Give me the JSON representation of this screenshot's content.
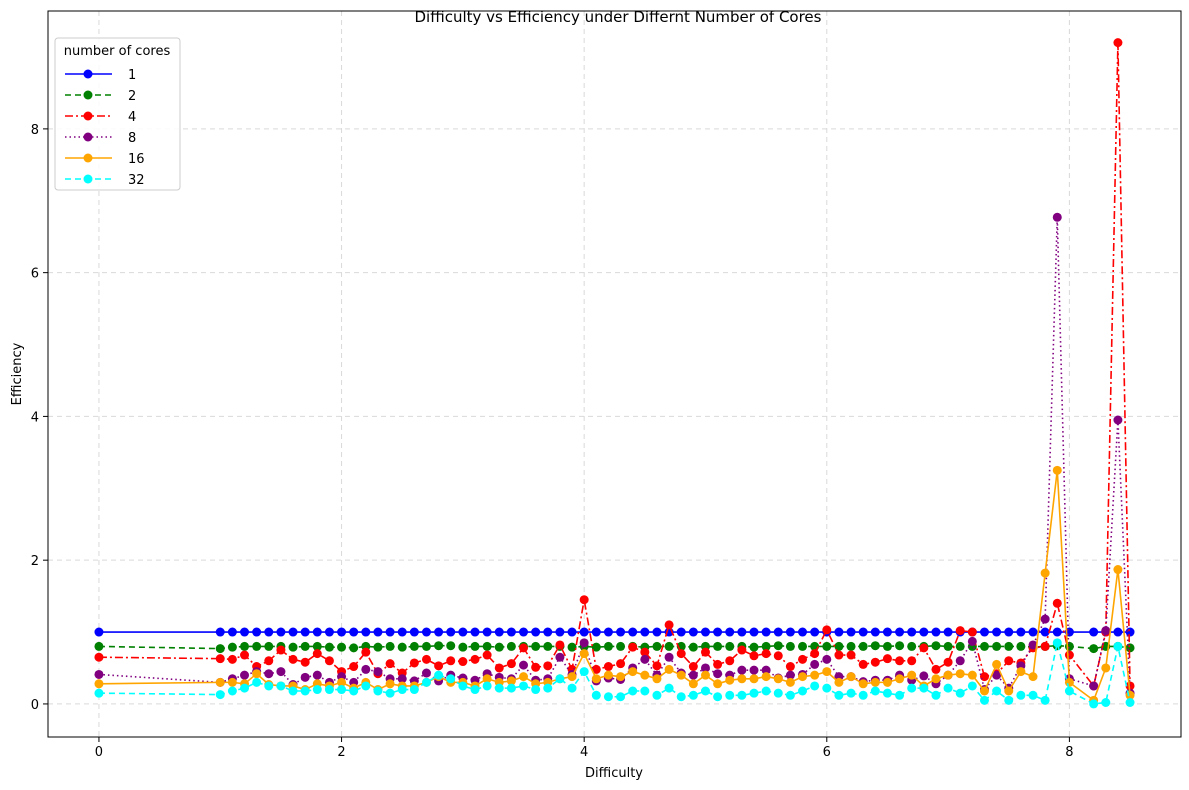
{
  "chart_data": {
    "type": "line",
    "title": "Difficulty vs Efficiency under Differnt Number of Cores",
    "xlabel": "Difficulty",
    "ylabel": "Efficiency",
    "xlim": [
      -0.42,
      8.92
    ],
    "ylim": [
      -0.46,
      9.64
    ],
    "xticks": [
      0,
      2,
      4,
      6,
      8
    ],
    "yticks": [
      0,
      2,
      4,
      6,
      8
    ],
    "grid": true,
    "legend": {
      "title": "number of cores",
      "placement": "top-left"
    },
    "x": [
      0,
      1,
      1.1,
      1.2,
      1.3,
      1.4,
      1.5,
      1.6,
      1.7,
      1.8,
      1.9,
      2,
      2.1,
      2.2,
      2.3,
      2.4,
      2.5,
      2.6,
      2.7,
      2.8,
      2.9,
      3,
      3.1,
      3.2,
      3.3,
      3.4,
      3.5,
      3.6,
      3.7,
      3.8,
      3.9,
      4,
      4.1,
      4.2,
      4.3,
      4.4,
      4.5,
      4.6,
      4.7,
      4.8,
      4.9,
      5,
      5.1,
      5.2,
      5.3,
      5.4,
      5.5,
      5.6,
      5.7,
      5.8,
      5.9,
      6,
      6.1,
      6.2,
      6.3,
      6.4,
      6.5,
      6.6,
      6.7,
      6.8,
      6.9,
      7,
      7.1,
      7.2,
      7.3,
      7.4,
      7.5,
      7.6,
      7.7,
      7.8,
      7.9,
      8,
      8.2,
      8.3,
      8.4,
      8.5
    ],
    "series": [
      {
        "name": "1",
        "color": "#0000ff",
        "dash": "solid",
        "values": [
          1,
          1,
          1,
          1,
          1,
          1,
          1,
          1,
          1,
          1,
          1,
          1,
          1,
          1,
          1,
          1,
          1,
          1,
          1,
          1,
          1,
          1,
          1,
          1,
          1,
          1,
          1,
          1,
          1,
          1,
          1,
          1,
          1,
          1,
          1,
          1,
          1,
          1,
          1,
          1,
          1,
          1,
          1,
          1,
          1,
          1,
          1,
          1,
          1,
          1,
          1,
          1,
          1,
          1,
          1,
          1,
          1,
          1,
          1,
          1,
          1,
          1,
          1,
          1,
          1,
          1,
          1,
          1,
          1,
          1,
          1,
          1,
          1,
          1,
          1,
          1
        ]
      },
      {
        "name": "2",
        "color": "#008000",
        "dash": "dashed",
        "values": [
          0.8,
          0.77,
          0.79,
          0.8,
          0.8,
          0.8,
          0.8,
          0.79,
          0.8,
          0.8,
          0.79,
          0.79,
          0.78,
          0.8,
          0.79,
          0.8,
          0.79,
          0.8,
          0.8,
          0.81,
          0.81,
          0.79,
          0.8,
          0.8,
          0.79,
          0.8,
          0.8,
          0.8,
          0.8,
          0.8,
          0.79,
          0.8,
          0.79,
          0.8,
          0.8,
          0.8,
          0.79,
          0.8,
          0.8,
          0.8,
          0.79,
          0.8,
          0.8,
          0.8,
          0.8,
          0.79,
          0.8,
          0.81,
          0.8,
          0.8,
          0.8,
          0.8,
          0.8,
          0.8,
          0.8,
          0.81,
          0.8,
          0.81,
          0.8,
          0.8,
          0.81,
          0.8,
          0.8,
          0.8,
          0.8,
          0.8,
          0.8,
          0.8,
          0.79,
          0.8,
          0.81,
          0.8,
          0.77,
          0.8,
          0.8,
          0.78
        ]
      },
      {
        "name": "4",
        "color": "#ff0000",
        "dash": "dashdot",
        "values": [
          0.65,
          0.63,
          0.62,
          0.68,
          0.52,
          0.6,
          0.75,
          0.62,
          0.58,
          0.7,
          0.6,
          0.45,
          0.52,
          0.72,
          0.42,
          0.56,
          0.43,
          0.57,
          0.62,
          0.53,
          0.6,
          0.59,
          0.62,
          0.68,
          0.5,
          0.56,
          0.78,
          0.51,
          0.53,
          0.82,
          0.48,
          1.45,
          0.48,
          0.52,
          0.56,
          0.79,
          0.72,
          0.53,
          1.1,
          0.7,
          0.52,
          0.72,
          0.55,
          0.6,
          0.75,
          0.67,
          0.7,
          0.67,
          0.52,
          0.62,
          0.7,
          1.03,
          0.68,
          0.68,
          0.55,
          0.58,
          0.63,
          0.6,
          0.6,
          0.78,
          0.48,
          0.58,
          1.02,
          1.0,
          0.38,
          0.42,
          0.6,
          0.57,
          0.78,
          0.8,
          1.4,
          0.68,
          0.25,
          1.0,
          9.2,
          0.25
        ]
      },
      {
        "name": "8",
        "color": "#800080",
        "dash": "dotted",
        "values": [
          0.41,
          0.3,
          0.35,
          0.4,
          0.45,
          0.42,
          0.45,
          0.27,
          0.37,
          0.4,
          0.3,
          0.38,
          0.3,
          0.48,
          0.45,
          0.35,
          0.35,
          0.32,
          0.43,
          0.32,
          0.4,
          0.36,
          0.33,
          0.42,
          0.37,
          0.35,
          0.54,
          0.33,
          0.35,
          0.65,
          0.41,
          0.85,
          0.32,
          0.36,
          0.34,
          0.5,
          0.62,
          0.4,
          0.65,
          0.43,
          0.4,
          0.5,
          0.42,
          0.4,
          0.47,
          0.47,
          0.47,
          0.36,
          0.4,
          0.41,
          0.55,
          0.62,
          0.38,
          0.38,
          0.31,
          0.33,
          0.33,
          0.4,
          0.33,
          0.39,
          0.28,
          0.4,
          0.6,
          0.87,
          0.2,
          0.4,
          0.22,
          0.53,
          0.82,
          1.18,
          6.77,
          0.35,
          0.25,
          1.02,
          3.95,
          0.15
        ]
      },
      {
        "name": "16",
        "color": "#ffa500",
        "dash": "solid",
        "values": [
          0.28,
          0.3,
          0.3,
          0.28,
          0.42,
          0.27,
          0.25,
          0.25,
          0.2,
          0.28,
          0.25,
          0.3,
          0.22,
          0.3,
          0.2,
          0.28,
          0.25,
          0.25,
          0.3,
          0.38,
          0.3,
          0.3,
          0.25,
          0.35,
          0.3,
          0.32,
          0.38,
          0.28,
          0.3,
          0.35,
          0.38,
          0.7,
          0.35,
          0.4,
          0.38,
          0.45,
          0.4,
          0.35,
          0.48,
          0.4,
          0.28,
          0.4,
          0.28,
          0.33,
          0.35,
          0.35,
          0.38,
          0.35,
          0.3,
          0.38,
          0.4,
          0.45,
          0.3,
          0.38,
          0.28,
          0.3,
          0.3,
          0.35,
          0.4,
          0.25,
          0.35,
          0.4,
          0.42,
          0.4,
          0.18,
          0.55,
          0.18,
          0.45,
          0.38,
          1.82,
          3.25,
          0.3,
          0.05,
          0.5,
          1.87,
          0.12
        ]
      },
      {
        "name": "32",
        "color": "#00ffff",
        "dash": "dashed",
        "values": [
          0.15,
          0.13,
          0.18,
          0.22,
          0.3,
          0.25,
          0.25,
          0.18,
          0.18,
          0.2,
          0.2,
          0.2,
          0.18,
          0.25,
          0.18,
          0.15,
          0.2,
          0.2,
          0.3,
          0.4,
          0.35,
          0.25,
          0.2,
          0.25,
          0.22,
          0.22,
          0.25,
          0.2,
          0.22,
          0.35,
          0.22,
          0.45,
          0.12,
          0.1,
          0.1,
          0.18,
          0.18,
          0.12,
          0.22,
          0.1,
          0.12,
          0.18,
          0.1,
          0.12,
          0.12,
          0.15,
          0.18,
          0.15,
          0.12,
          0.18,
          0.25,
          0.22,
          0.12,
          0.15,
          0.12,
          0.18,
          0.15,
          0.12,
          0.22,
          0.22,
          0.12,
          0.22,
          0.15,
          0.25,
          0.05,
          0.18,
          0.05,
          0.12,
          0.12,
          0.05,
          0.85,
          0.18,
          0.0,
          0.02,
          0.8,
          0.02
        ]
      }
    ]
  }
}
